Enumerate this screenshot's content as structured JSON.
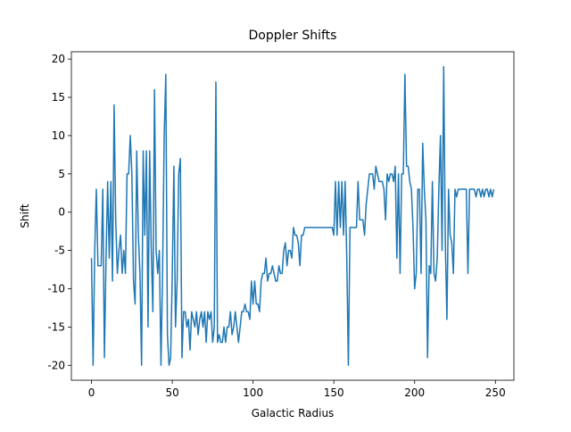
{
  "chart_data": {
    "type": "line",
    "title": "Doppler Shifts",
    "x_label": "Galactic Radius",
    "y_label": "Shift",
    "x": [
      0,
      1,
      2,
      3,
      4,
      5,
      6,
      7,
      8,
      9,
      10,
      11,
      12,
      13,
      14,
      15,
      16,
      17,
      18,
      19,
      20,
      21,
      22,
      23,
      24,
      25,
      26,
      27,
      28,
      29,
      30,
      31,
      32,
      33,
      34,
      35,
      36,
      37,
      38,
      39,
      40,
      41,
      42,
      43,
      44,
      45,
      46,
      47,
      48,
      49,
      50,
      51,
      52,
      53,
      54,
      55,
      56,
      57,
      58,
      59,
      60,
      61,
      62,
      63,
      64,
      65,
      66,
      67,
      68,
      69,
      70,
      71,
      72,
      73,
      74,
      75,
      76,
      77,
      78,
      79,
      80,
      81,
      82,
      83,
      84,
      85,
      86,
      87,
      88,
      89,
      90,
      91,
      92,
      93,
      94,
      95,
      96,
      97,
      98,
      99,
      100,
      101,
      102,
      103,
      104,
      105,
      106,
      107,
      108,
      109,
      110,
      111,
      112,
      113,
      114,
      115,
      116,
      117,
      118,
      119,
      120,
      121,
      122,
      123,
      124,
      125,
      126,
      127,
      128,
      129,
      130,
      131,
      132,
      133,
      134,
      135,
      136,
      137,
      138,
      139,
      140,
      141,
      142,
      143,
      144,
      145,
      146,
      147,
      148,
      149,
      150,
      151,
      152,
      153,
      154,
      155,
      156,
      157,
      158,
      159,
      160,
      161,
      162,
      163,
      164,
      165,
      166,
      167,
      168,
      169,
      170,
      171,
      172,
      173,
      174,
      175,
      176,
      177,
      178,
      179,
      180,
      181,
      182,
      183,
      184,
      185,
      186,
      187,
      188,
      189,
      190,
      191,
      192,
      193,
      194,
      195,
      196,
      197,
      198,
      199,
      200,
      201,
      202,
      203,
      204,
      205,
      206,
      207,
      208,
      209,
      210,
      211,
      212,
      213,
      214,
      215,
      216,
      217,
      218,
      219,
      220,
      221,
      222,
      223,
      224,
      225,
      226,
      227,
      228,
      229,
      230,
      231,
      232,
      233,
      234,
      235,
      236,
      237,
      238,
      239,
      240,
      241,
      242,
      243,
      244,
      245,
      246,
      247,
      248,
      249
    ],
    "series": [
      {
        "color": "#1f77b4",
        "values": [
          -6,
          -20,
          -5,
          3,
          -7,
          -7,
          -7,
          3,
          -19,
          -6,
          4,
          -6,
          4,
          -9,
          14,
          -1,
          -8,
          -5,
          -3,
          -8,
          -5,
          -8,
          5,
          5,
          10,
          5,
          -9,
          -12,
          8,
          -3,
          -8,
          -20,
          8,
          -3,
          8,
          -15,
          8,
          -5,
          -13,
          16,
          -5,
          -8,
          -5,
          -20,
          -8,
          10,
          18,
          -16,
          -20,
          -19,
          -8,
          6,
          -15,
          -9,
          5,
          7,
          -19,
          -13,
          -13,
          -15,
          -14,
          -18,
          -13,
          -14,
          -15,
          -13,
          -16,
          -14,
          -13,
          -15,
          -13,
          -17,
          -13,
          -14,
          -13,
          -17,
          -15,
          17,
          -17,
          -16,
          -17,
          -17,
          -15,
          -17,
          -15,
          -15,
          -13,
          -16,
          -15,
          -13,
          -15,
          -17,
          -15,
          -13,
          -13,
          -12,
          -13,
          -13,
          -14,
          -9,
          -12,
          -9,
          -12,
          -12,
          -13,
          -9,
          -8,
          -8,
          -6,
          -9,
          -8,
          -8,
          -7,
          -8,
          -9,
          -9,
          -7,
          -8,
          -8,
          -5,
          -4,
          -7,
          -5,
          -5,
          -6,
          -2,
          -3,
          -3,
          -4,
          -7,
          -3,
          -3,
          -2,
          -2,
          -2,
          -2,
          -2,
          -2,
          -2,
          -2,
          -2,
          -2,
          -2,
          -2,
          -2,
          -2,
          -2,
          -2,
          -2,
          -2,
          -3,
          4,
          -3,
          4,
          -2,
          4,
          -3,
          4,
          -6,
          -20,
          -2,
          -2,
          -2,
          -2,
          -2,
          4,
          -1,
          -1,
          -1,
          -3,
          1,
          3,
          5,
          5,
          5,
          3,
          6,
          5,
          4,
          4,
          4,
          3,
          -1,
          5,
          4,
          5,
          5,
          4,
          6,
          -6,
          5,
          -8,
          5,
          5,
          18,
          6,
          6,
          4,
          3,
          -2,
          -10,
          -8,
          3,
          3,
          -8,
          9,
          3,
          -1,
          -19,
          -7,
          -8,
          4,
          -8,
          -9,
          -6,
          3,
          10,
          -5,
          19,
          -4,
          -14,
          3,
          -3,
          -4,
          -8,
          3,
          2,
          3,
          3,
          3,
          3,
          3,
          3,
          -8,
          3,
          3,
          3,
          3,
          2,
          3,
          3,
          2,
          3,
          2,
          3,
          3,
          2,
          3,
          2,
          3
        ]
      }
    ],
    "xlim": [
      -12.45,
      261.45
    ],
    "ylim": [
      -21.95,
      20.95
    ],
    "xticks": [
      0,
      50,
      100,
      150,
      200,
      250
    ],
    "yticks": [
      -20,
      -15,
      -10,
      -5,
      0,
      5,
      10,
      15,
      20
    ]
  }
}
